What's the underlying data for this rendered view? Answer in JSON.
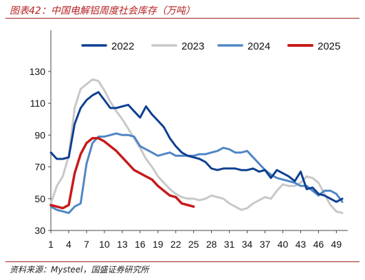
{
  "figure": {
    "title": "图表42：中国电解铝周度社会库存（万吨）",
    "source": "资料来源：Mysteel，国盛证券研究所"
  },
  "chart_data": {
    "type": "line",
    "title": "图表42：中国电解铝周度社会库存（万吨）",
    "xlabel": "",
    "ylabel": "",
    "x_ticks": [
      1,
      4,
      7,
      10,
      13,
      16,
      19,
      22,
      25,
      28,
      31,
      34,
      37,
      40,
      43,
      46,
      49
    ],
    "y_ticks": [
      30,
      50,
      70,
      90,
      110,
      130
    ],
    "xlim": [
      1,
      50
    ],
    "ylim": [
      30,
      136
    ],
    "grid": false,
    "legend": "top",
    "series": [
      {
        "name": "2022",
        "color": "#0d3f91",
        "x": [
          1,
          2,
          3,
          4,
          5,
          6,
          7,
          8,
          9,
          10,
          11,
          12,
          13,
          14,
          15,
          16,
          17,
          18,
          19,
          20,
          21,
          22,
          23,
          24,
          25,
          26,
          27,
          28,
          29,
          30,
          31,
          32,
          33,
          34,
          35,
          36,
          37,
          38,
          39,
          40,
          41,
          42,
          43,
          44,
          45,
          46,
          47,
          48,
          49,
          50
        ],
        "values": [
          79,
          75,
          75,
          76,
          97,
          107,
          112,
          115,
          117,
          112,
          107,
          107,
          108,
          109,
          105,
          101,
          108,
          103,
          99,
          95,
          88,
          83,
          79,
          77,
          76,
          75,
          73,
          69,
          68,
          69,
          69,
          69,
          68,
          68,
          69,
          67,
          68,
          63,
          68,
          66,
          64,
          61,
          67,
          56,
          57,
          53,
          52,
          50,
          48,
          50
        ]
      },
      {
        "name": "2023",
        "color": "#c8c8c8",
        "x": [
          1,
          2,
          3,
          4,
          5,
          6,
          7,
          8,
          9,
          10,
          11,
          12,
          13,
          14,
          15,
          16,
          17,
          18,
          19,
          20,
          21,
          22,
          23,
          24,
          25,
          26,
          27,
          28,
          29,
          30,
          31,
          32,
          33,
          34,
          35,
          36,
          37,
          38,
          39,
          40,
          41,
          42,
          43,
          44,
          45,
          46,
          47,
          48,
          49,
          50
        ],
        "values": [
          47,
          58,
          64,
          77,
          107,
          119,
          122,
          125,
          124,
          118,
          111,
          105,
          100,
          94,
          88,
          82,
          75,
          70,
          64,
          60,
          56,
          53,
          51,
          50,
          50,
          49,
          50,
          52,
          51,
          50,
          47,
          45,
          43,
          44,
          47,
          49,
          51,
          50,
          55,
          59,
          58,
          58,
          60,
          64,
          63,
          60,
          53,
          46,
          42,
          41
        ]
      },
      {
        "name": "2024",
        "color": "#4f86c6",
        "x": [
          1,
          2,
          3,
          4,
          5,
          6,
          7,
          8,
          9,
          10,
          11,
          12,
          13,
          14,
          15,
          16,
          17,
          18,
          19,
          20,
          21,
          22,
          23,
          24,
          25,
          26,
          27,
          28,
          29,
          30,
          31,
          32,
          33,
          34,
          35,
          36,
          37,
          38,
          39,
          40,
          41,
          42,
          43,
          44,
          45,
          46,
          47,
          48,
          49,
          50
        ],
        "values": [
          45,
          43,
          42,
          41,
          45,
          47,
          72,
          85,
          89,
          89,
          90,
          91,
          90,
          90,
          89,
          83,
          81,
          79,
          77,
          78,
          79,
          77,
          77,
          77,
          77,
          78,
          78,
          79,
          80,
          82,
          81,
          79,
          79,
          80,
          76,
          72,
          68,
          65,
          63,
          62,
          61,
          60,
          58,
          58,
          55,
          52,
          55,
          55,
          53,
          48
        ]
      },
      {
        "name": "2025",
        "color": "#c81a1a",
        "x": [
          1,
          2,
          3,
          4,
          5,
          6,
          7,
          8,
          9,
          10,
          11,
          12,
          13,
          14,
          15,
          16,
          17,
          18,
          19,
          20,
          21,
          22,
          23,
          24,
          25
        ],
        "values": [
          46,
          45,
          44,
          46,
          66,
          78,
          85,
          88,
          88,
          86,
          83,
          80,
          76,
          72,
          68,
          66,
          64,
          62,
          58,
          55,
          52,
          51,
          47,
          46,
          45
        ]
      }
    ]
  }
}
